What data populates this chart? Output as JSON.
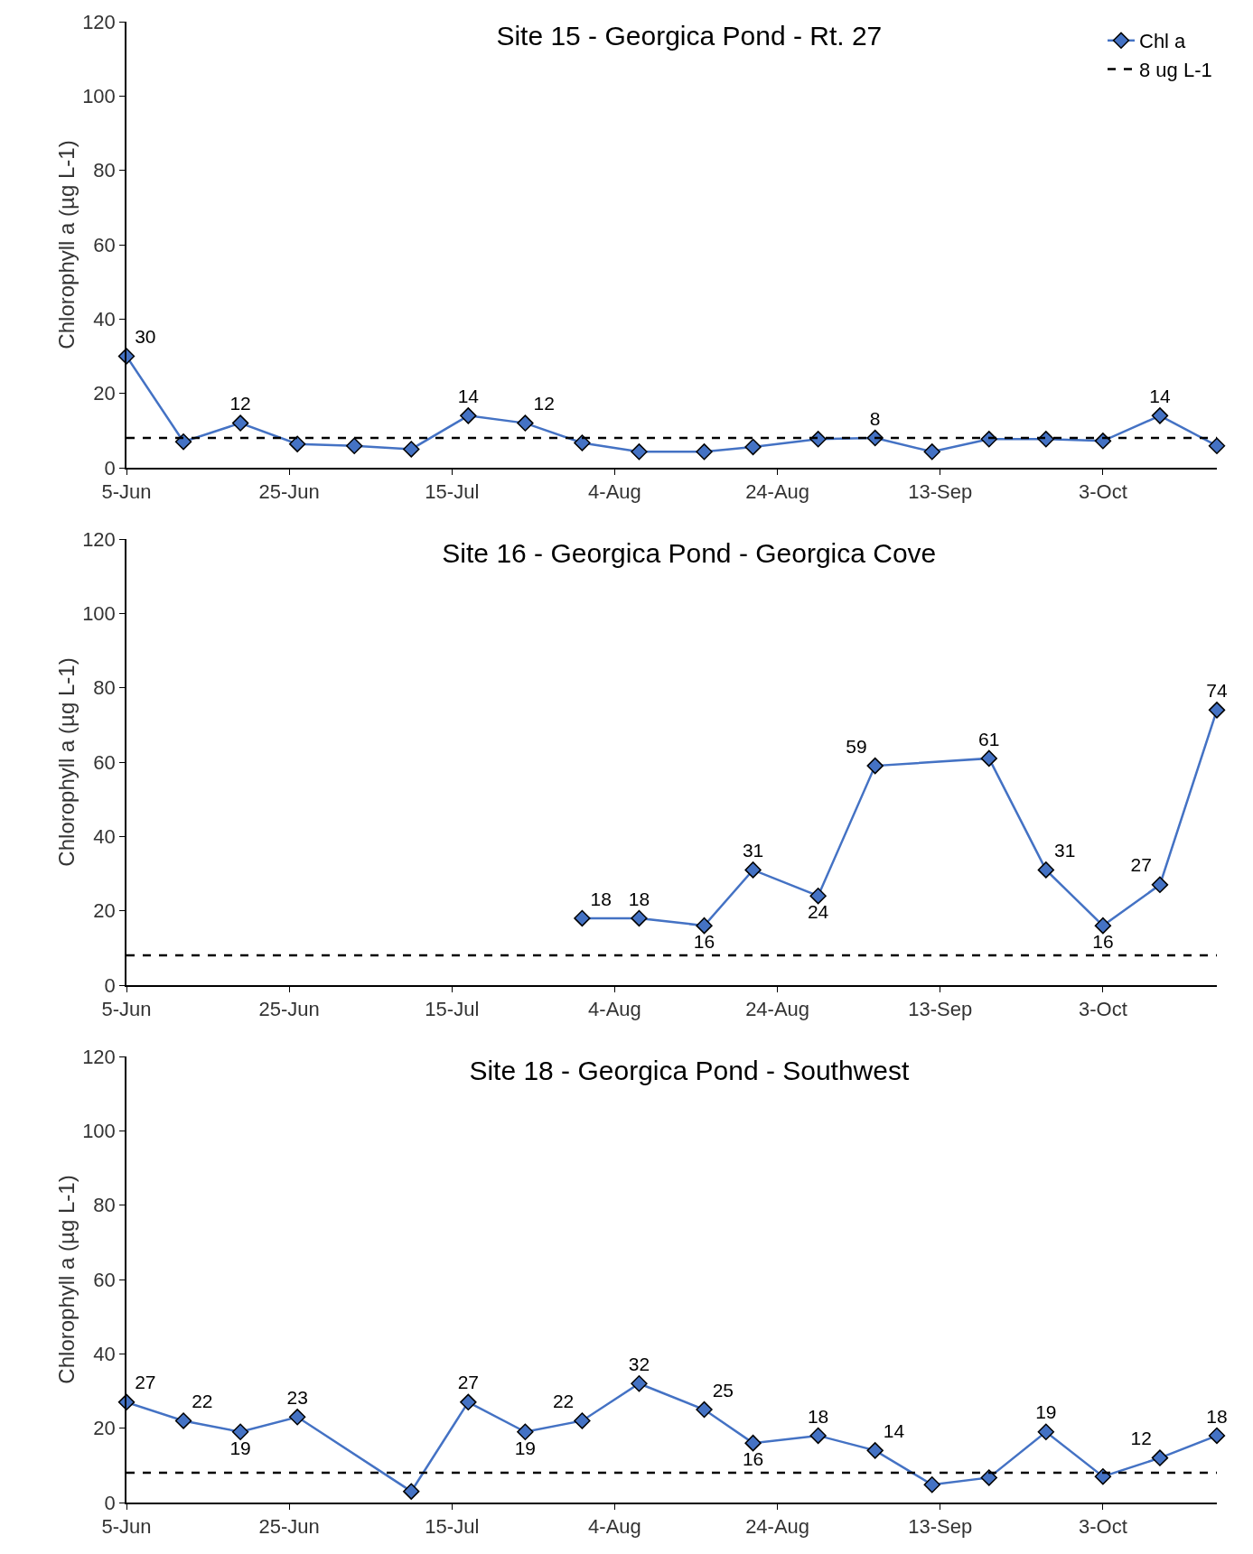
{
  "chart_data": [
    {
      "type": "line",
      "title": "Site 15 - Georgica Pond - Rt. 27",
      "ylabel": "Chlorophyll a (µg L-1)",
      "x": [
        "--06-05",
        "--06-12",
        "--06-19",
        "--06-26",
        "--07-03",
        "--07-10",
        "--07-17",
        "--07-24",
        "--07-31",
        "--08-07",
        "--08-15",
        "--08-21",
        "--08-29",
        "--09-05",
        "--09-12",
        "--09-19",
        "--09-26",
        "--10-03",
        "--10-10",
        "--10-17"
      ],
      "series": [
        {
          "name": "Chl a",
          "color": "#4472c4",
          "values": [
            30,
            7,
            12,
            6.4,
            5.9,
            5,
            14,
            12,
            6.7,
            4.3,
            4.3,
            5.6,
            7.7,
            8,
            4.3,
            7.7,
            7.7,
            7.2,
            14,
            5.9
          ],
          "value_labels": [
            "30",
            null,
            "12",
            null,
            null,
            null,
            "14",
            "12",
            null,
            null,
            null,
            null,
            null,
            "8",
            null,
            null,
            null,
            null,
            "14",
            null
          ]
        }
      ],
      "ref_lines": [
        {
          "axis": "y",
          "value": 8,
          "label": "8 ug L-1",
          "color": "#000000",
          "line_style": "dashed"
        }
      ],
      "xlim": [
        "--06-05",
        "--10-17"
      ],
      "xticks": [
        {
          "value": "--06-05",
          "label": "5-Jun"
        },
        {
          "value": "--06-25",
          "label": "25-Jun"
        },
        {
          "value": "--07-15",
          "label": "15-Jul"
        },
        {
          "value": "--08-04",
          "label": "4-Aug"
        },
        {
          "value": "--08-24",
          "label": "24-Aug"
        },
        {
          "value": "--09-13",
          "label": "13-Sep"
        },
        {
          "value": "--10-03",
          "label": "3-Oct"
        }
      ],
      "ylim": [
        0,
        120
      ],
      "yticks": [
        0,
        20,
        40,
        60,
        80,
        100,
        120
      ],
      "grid": false,
      "legend": "top right",
      "marker": "diamond",
      "line_style": "solid"
    },
    {
      "type": "line",
      "title": "Site 16 - Georgica Pond - Georgica Cove",
      "ylabel": "Chlorophyll a (µg L-1)",
      "series": [
        {
          "color": "#4472c4",
          "x": [
            "--07-31",
            "--08-07",
            "--08-15",
            "--08-21",
            "--08-29",
            "--09-05",
            "--09-19",
            "--09-26",
            "--10-03",
            "--10-10",
            "--10-17"
          ],
          "values": [
            18,
            18,
            16,
            31,
            24,
            59,
            61,
            31,
            16,
            27,
            74
          ],
          "value_labels": [
            "18",
            "18",
            "16",
            "31",
            "24",
            "59",
            "61",
            "31",
            "16",
            "27",
            "74"
          ]
        }
      ],
      "ref_lines": [
        {
          "axis": "y",
          "value": 8,
          "color": "#000000",
          "line_style": "dashed"
        }
      ],
      "xlim": [
        "--06-05",
        "--10-17"
      ],
      "xticks": [
        {
          "value": "--06-05",
          "label": "5-Jun"
        },
        {
          "value": "--06-25",
          "label": "25-Jun"
        },
        {
          "value": "--07-15",
          "label": "15-Jul"
        },
        {
          "value": "--08-04",
          "label": "4-Aug"
        },
        {
          "value": "--08-24",
          "label": "24-Aug"
        },
        {
          "value": "--09-13",
          "label": "13-Sep"
        },
        {
          "value": "--10-03",
          "label": "3-Oct"
        }
      ],
      "ylim": [
        0,
        120
      ],
      "yticks": [
        0,
        20,
        40,
        60,
        80,
        100,
        120
      ],
      "grid": false,
      "marker": "diamond",
      "line_style": "solid"
    },
    {
      "type": "line",
      "title": "Site 18 - Georgica Pond - Southwest",
      "ylabel": "Chlorophyll a (µg L-1)",
      "series": [
        {
          "color": "#4472c4",
          "x": [
            "--06-05",
            "--06-12",
            "--06-19",
            "--06-26",
            "--07-10",
            "--07-17",
            "--07-24",
            "--07-31",
            "--08-07",
            "--08-15",
            "--08-21",
            "--08-29",
            "--09-05",
            "--09-12",
            "--09-19",
            "--09-26",
            "--10-03",
            "--10-10",
            "--10-17"
          ],
          "values": [
            27,
            22,
            19,
            23,
            3,
            27,
            19,
            22,
            32,
            25,
            16,
            18,
            14,
            4.8,
            6.7,
            19,
            7,
            12,
            18
          ],
          "value_labels": [
            "27",
            "22",
            "19",
            "23",
            null,
            "27",
            "19",
            "22",
            "32",
            "25",
            "16",
            "18",
            "14",
            null,
            null,
            "19",
            null,
            "12",
            "18"
          ]
        }
      ],
      "ref_lines": [
        {
          "axis": "y",
          "value": 8,
          "color": "#000000",
          "line_style": "dashed"
        }
      ],
      "xlim": [
        "--06-05",
        "--10-17"
      ],
      "xticks": [
        {
          "value": "--06-05",
          "label": "5-Jun"
        },
        {
          "value": "--06-25",
          "label": "25-Jun"
        },
        {
          "value": "--07-15",
          "label": "15-Jul"
        },
        {
          "value": "--08-04",
          "label": "4-Aug"
        },
        {
          "value": "--08-24",
          "label": "24-Aug"
        },
        {
          "value": "--09-13",
          "label": "13-Sep"
        },
        {
          "value": "--10-03",
          "label": "3-Oct"
        }
      ],
      "ylim": [
        0,
        120
      ],
      "yticks": [
        0,
        20,
        40,
        60,
        80,
        100,
        120
      ],
      "grid": false,
      "marker": "diamond",
      "line_style": "solid"
    }
  ]
}
